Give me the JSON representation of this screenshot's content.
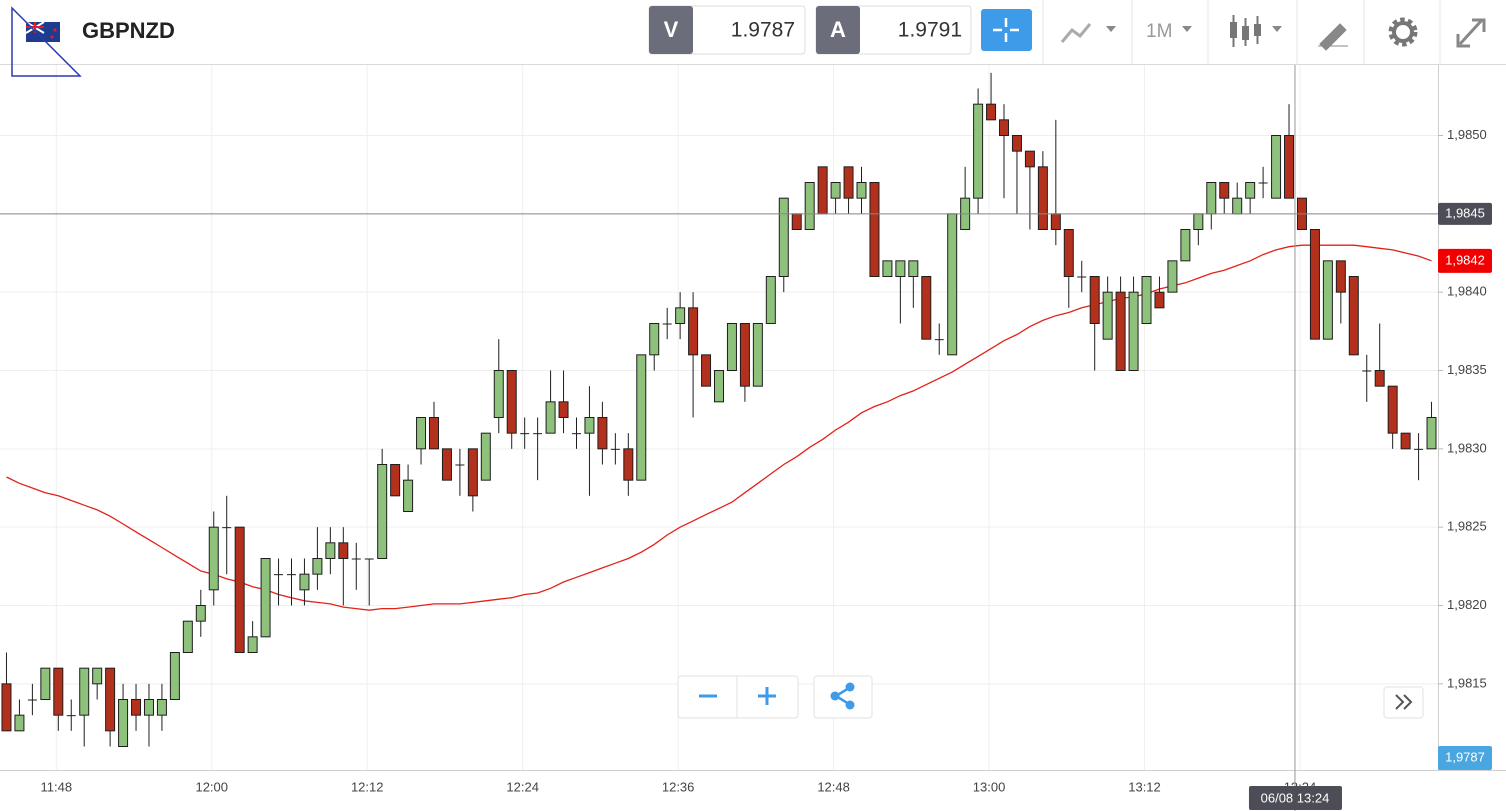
{
  "toolbar": {
    "symbol": "GBPNZD",
    "bid_label": "V",
    "bid": 1.9787,
    "ask_label": "A",
    "ask": 1.9791,
    "timeframe": "1M"
  },
  "chart_data": {
    "type": "candlestick",
    "categories": [
      null,
      null,
      null,
      null,
      "11:48",
      null,
      null,
      null,
      null,
      null,
      null,
      null,
      null,
      null,
      null,
      null,
      "12:00",
      null,
      null,
      null,
      null,
      null,
      null,
      null,
      null,
      null,
      null,
      null,
      "12:12",
      null,
      null,
      null,
      null,
      null,
      null,
      null,
      null,
      null,
      null,
      null,
      "12:24",
      null,
      null,
      null,
      null,
      null,
      null,
      null,
      null,
      null,
      null,
      null,
      "12:36",
      null,
      null,
      null,
      null,
      null,
      null,
      null,
      null,
      null,
      null,
      null,
      "12:48",
      null,
      null,
      null,
      null,
      null,
      null,
      null,
      null,
      null,
      null,
      null,
      "13:00",
      null,
      null,
      null,
      null,
      null,
      null,
      null,
      null,
      null,
      null,
      null,
      "13:12",
      null,
      null,
      null,
      null,
      null,
      null,
      null,
      null,
      null,
      null,
      null,
      "13:24",
      null,
      null,
      null,
      null,
      null,
      null,
      null,
      null,
      null,
      null
    ],
    "open": [
      1.9815,
      1.9812,
      1.9814,
      1.9814,
      1.9816,
      1.9813,
      1.9813,
      1.9815,
      1.9816,
      1.9811,
      1.9814,
      1.9813,
      1.9813,
      1.9814,
      1.9817,
      1.9819,
      1.9821,
      1.9825,
      1.9825,
      1.9817,
      1.9818,
      1.9822,
      1.9822,
      1.9821,
      1.9822,
      1.9823,
      1.9824,
      1.9823,
      1.9823,
      1.9823,
      1.9829,
      1.9826,
      1.983,
      1.9832,
      1.983,
      1.9829,
      1.983,
      1.9828,
      1.9832,
      1.9835,
      1.9831,
      1.9831,
      1.9831,
      1.9833,
      1.9831,
      1.9831,
      1.9832,
      1.983,
      1.983,
      1.9828,
      1.9836,
      1.9838,
      1.9838,
      1.9839,
      1.9836,
      1.9833,
      1.9835,
      1.9838,
      1.9834,
      1.9838,
      1.9841,
      1.9845,
      1.9844,
      1.9848,
      1.9846,
      1.9848,
      1.9846,
      1.9847,
      1.9841,
      1.9841,
      1.9841,
      1.9841,
      1.9837,
      1.9836,
      1.9844,
      1.9846,
      1.9852,
      1.9851,
      1.985,
      1.9849,
      1.9848,
      1.9845,
      1.9844,
      1.9841,
      1.9841,
      1.9837,
      1.984,
      1.9835,
      1.9838,
      1.984,
      1.984,
      1.9842,
      1.9844,
      1.9845,
      1.9847,
      1.9845,
      1.9846,
      1.9847,
      1.9846,
      1.985,
      1.9846,
      1.9844,
      1.9837,
      1.9842,
      1.9841,
      1.9835,
      1.9835,
      1.9834,
      1.9831,
      1.983,
      1.983
    ],
    "high": [
      1.9817,
      1.9814,
      1.9815,
      1.9816,
      1.9816,
      1.9814,
      1.9816,
      1.9816,
      1.9816,
      1.9815,
      1.9815,
      1.9815,
      1.9815,
      1.9817,
      1.9819,
      1.9821,
      1.9826,
      1.9827,
      1.9825,
      1.9819,
      1.9823,
      1.9823,
      1.9823,
      1.9823,
      1.9825,
      1.9825,
      1.9825,
      1.9824,
      1.9823,
      1.983,
      1.9829,
      1.9829,
      1.9832,
      1.9833,
      1.983,
      1.983,
      1.983,
      1.9831,
      1.9837,
      1.9835,
      1.9832,
      1.9832,
      1.9835,
      1.9835,
      1.9832,
      1.9834,
      1.9833,
      1.9831,
      1.9831,
      1.9836,
      1.9838,
      1.9839,
      1.984,
      1.984,
      1.9836,
      1.9835,
      1.9838,
      1.9838,
      1.9838,
      1.9841,
      1.9846,
      1.9845,
      1.9847,
      1.9848,
      1.9847,
      1.9848,
      1.9848,
      1.9847,
      1.9842,
      1.9842,
      1.9842,
      1.9841,
      1.9838,
      1.9845,
      1.9848,
      1.9853,
      1.9854,
      1.9852,
      1.985,
      1.9849,
      1.9849,
      1.9851,
      1.9844,
      1.9842,
      1.9841,
      1.9841,
      1.9841,
      1.9841,
      1.9841,
      1.9841,
      1.9842,
      1.9844,
      1.9845,
      1.9847,
      1.9847,
      1.9847,
      1.9847,
      1.9848,
      1.985,
      1.9852,
      1.9846,
      1.9844,
      1.9842,
      1.9842,
      1.9841,
      1.9836,
      1.9838,
      1.9834,
      1.9831,
      1.9831,
      1.9833
    ],
    "low": [
      1.9812,
      1.9812,
      1.9813,
      1.9814,
      1.9812,
      1.9812,
      1.9811,
      1.9814,
      1.9811,
      1.9811,
      1.9812,
      1.9811,
      1.9812,
      1.9814,
      1.9817,
      1.9818,
      1.982,
      1.9822,
      1.9817,
      1.9817,
      1.9818,
      1.982,
      1.982,
      1.982,
      1.9821,
      1.9822,
      1.982,
      1.9821,
      1.982,
      1.9823,
      1.9827,
      1.9826,
      1.9829,
      1.983,
      1.9828,
      1.9827,
      1.9826,
      1.9828,
      1.9831,
      1.983,
      1.983,
      1.9828,
      1.9831,
      1.9831,
      1.983,
      1.9827,
      1.9829,
      1.9829,
      1.9827,
      1.9828,
      1.9835,
      1.9837,
      1.9837,
      1.9832,
      1.9834,
      1.9833,
      1.9835,
      1.9833,
      1.9834,
      1.9838,
      1.984,
      1.9844,
      1.9844,
      1.9845,
      1.9845,
      1.9845,
      1.9845,
      1.9841,
      1.9841,
      1.9838,
      1.9839,
      1.9837,
      1.9836,
      1.9836,
      1.9844,
      1.9845,
      1.9851,
      1.9846,
      1.9845,
      1.9844,
      1.9844,
      1.9843,
      1.9839,
      1.984,
      1.9835,
      1.9837,
      1.9835,
      1.9835,
      1.9838,
      1.9839,
      1.984,
      1.9842,
      1.9843,
      1.9844,
      1.9845,
      1.9845,
      1.9845,
      1.9846,
      1.9846,
      1.9846,
      1.9844,
      1.9837,
      1.9837,
      1.9838,
      1.9836,
      1.9833,
      1.9834,
      1.983,
      1.983,
      1.9828,
      1.983
    ],
    "close": [
      1.9812,
      1.9813,
      1.9814,
      1.9816,
      1.9813,
      1.9813,
      1.9816,
      1.9816,
      1.9812,
      1.9814,
      1.9813,
      1.9814,
      1.9814,
      1.9817,
      1.9819,
      1.982,
      1.9825,
      1.9825,
      1.9817,
      1.9818,
      1.9823,
      1.9822,
      1.9822,
      1.9822,
      1.9823,
      1.9824,
      1.9823,
      1.9823,
      1.9823,
      1.9829,
      1.9827,
      1.9828,
      1.9832,
      1.983,
      1.9828,
      1.9829,
      1.9827,
      1.9831,
      1.9835,
      1.9831,
      1.9831,
      1.9831,
      1.9833,
      1.9832,
      1.9831,
      1.9832,
      1.983,
      1.983,
      1.9828,
      1.9836,
      1.9838,
      1.9838,
      1.9839,
      1.9836,
      1.9834,
      1.9835,
      1.9838,
      1.9834,
      1.9838,
      1.9841,
      1.9846,
      1.9844,
      1.9847,
      1.9845,
      1.9847,
      1.9846,
      1.9847,
      1.9841,
      1.9842,
      1.9842,
      1.9842,
      1.9837,
      1.9837,
      1.9845,
      1.9846,
      1.9852,
      1.9851,
      1.985,
      1.9849,
      1.9848,
      1.9844,
      1.9844,
      1.9841,
      1.9841,
      1.9838,
      1.984,
      1.9835,
      1.984,
      1.9841,
      1.9839,
      1.9842,
      1.9844,
      1.9845,
      1.9847,
      1.9846,
      1.9846,
      1.9847,
      1.9847,
      1.985,
      1.9846,
      1.9844,
      1.9837,
      1.9842,
      1.984,
      1.9836,
      1.9835,
      1.9834,
      1.9831,
      1.983,
      1.983,
      1.9832
    ],
    "up_color": "#8dc17c",
    "down_color": "#b3301c",
    "ylim": [
      1.98095,
      1.98545
    ],
    "yticks": [
      {
        "value": 1.9815,
        "label": "1,9815"
      },
      {
        "value": 1.982,
        "label": "1,9820"
      },
      {
        "value": 1.9825,
        "label": "1,9825"
      },
      {
        "value": 1.983,
        "label": "1,9830"
      },
      {
        "value": 1.9835,
        "label": "1,9835"
      },
      {
        "value": 1.984,
        "label": "1,9840"
      },
      {
        "value": 1.9845,
        "label": "1,9845"
      },
      {
        "value": 1.985,
        "label": "1,9850"
      }
    ],
    "grid": true,
    "ma": {
      "color": "#e32119",
      "values": [
        1.98282,
        1.98278,
        1.98275,
        1.98272,
        1.9827,
        1.98267,
        1.98264,
        1.98261,
        1.98257,
        1.98252,
        1.98247,
        1.98242,
        1.98237,
        1.98232,
        1.98227,
        1.98222,
        1.9822,
        1.98217,
        1.98215,
        1.98212,
        1.9821,
        1.98207,
        1.98205,
        1.98203,
        1.98202,
        1.98201,
        1.98199,
        1.98198,
        1.98197,
        1.98198,
        1.98198,
        1.98199,
        1.982,
        1.98201,
        1.98201,
        1.98201,
        1.98202,
        1.98203,
        1.98204,
        1.98205,
        1.98207,
        1.98208,
        1.98211,
        1.98215,
        1.98218,
        1.98221,
        1.98224,
        1.98227,
        1.9823,
        1.98234,
        1.98239,
        1.98245,
        1.9825,
        1.98254,
        1.98258,
        1.98262,
        1.98266,
        1.98272,
        1.98278,
        1.98284,
        1.9829,
        1.98295,
        1.98301,
        1.98306,
        1.98312,
        1.98317,
        1.98323,
        1.98327,
        1.9833,
        1.98334,
        1.98337,
        1.98341,
        1.98345,
        1.98349,
        1.98354,
        1.98359,
        1.98364,
        1.98369,
        1.98373,
        1.98378,
        1.98382,
        1.98385,
        1.98387,
        1.9839,
        1.98392,
        1.98394,
        1.98396,
        1.98397,
        1.98399,
        1.98402,
        1.98404,
        1.98406,
        1.98409,
        1.98412,
        1.98414,
        1.98417,
        1.9842,
        1.98424,
        1.98427,
        1.98429,
        1.9843,
        1.9843,
        1.9843,
        1.9843,
        1.9843,
        1.98429,
        1.98428,
        1.98427,
        1.98425,
        1.98423,
        1.9842
      ]
    },
    "ma_label": {
      "value": 1.9842,
      "label": "1,9842"
    },
    "crosshair": {
      "label": "06/08 13:24",
      "price": {
        "value": 1.9845,
        "label": "1,9845"
      }
    },
    "bid_marker": {
      "value": 1.9787,
      "label": "1,9787"
    }
  }
}
